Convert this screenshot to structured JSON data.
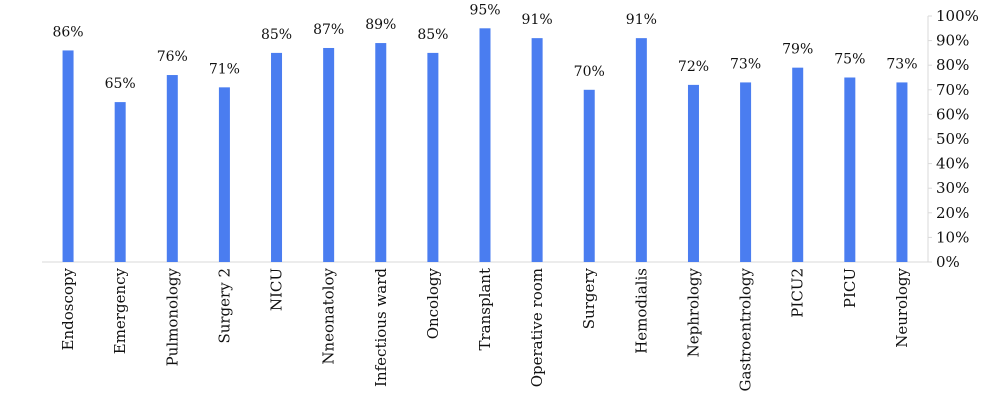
{
  "chart_data": {
    "type": "bar",
    "title": "",
    "xlabel": "",
    "ylabel": "",
    "categories": [
      "Endoscopy",
      "Emergency",
      "Pulmonology",
      "Surgery 2",
      "NICU",
      "Nneonatoloy",
      "Infectious ward",
      "Oncology",
      "Transplant",
      "Operative room",
      "Surgery",
      "Hemodialis",
      "Nephrology",
      "Gastroentrology",
      "PICU2",
      "PICU",
      "Neurology"
    ],
    "values": [
      86,
      65,
      76,
      71,
      85,
      87,
      89,
      85,
      95,
      91,
      70,
      91,
      72,
      73,
      79,
      75,
      73
    ],
    "data_labels": [
      "86%",
      "65%",
      "76%",
      "71%",
      "85%",
      "87%",
      "89%",
      "85%",
      "95%",
      "91%",
      "70%",
      "91%",
      "72%",
      "73%",
      "79%",
      "75%",
      "73%"
    ],
    "ylim": [
      0,
      100
    ],
    "y_ticks": [
      0,
      10,
      20,
      30,
      40,
      50,
      60,
      70,
      80,
      90,
      100
    ],
    "y_tick_labels": [
      "0%",
      "10%",
      "20%",
      "30%",
      "40%",
      "50%",
      "60%",
      "70%",
      "80%",
      "90%",
      "100%"
    ],
    "y_axis_position": "right",
    "x_label_orientation": "vertical",
    "grid": false,
    "legend": "none",
    "colors": {
      "bar": "#4a7df0",
      "axis": "#d9d9d9",
      "text": "#111111"
    }
  }
}
